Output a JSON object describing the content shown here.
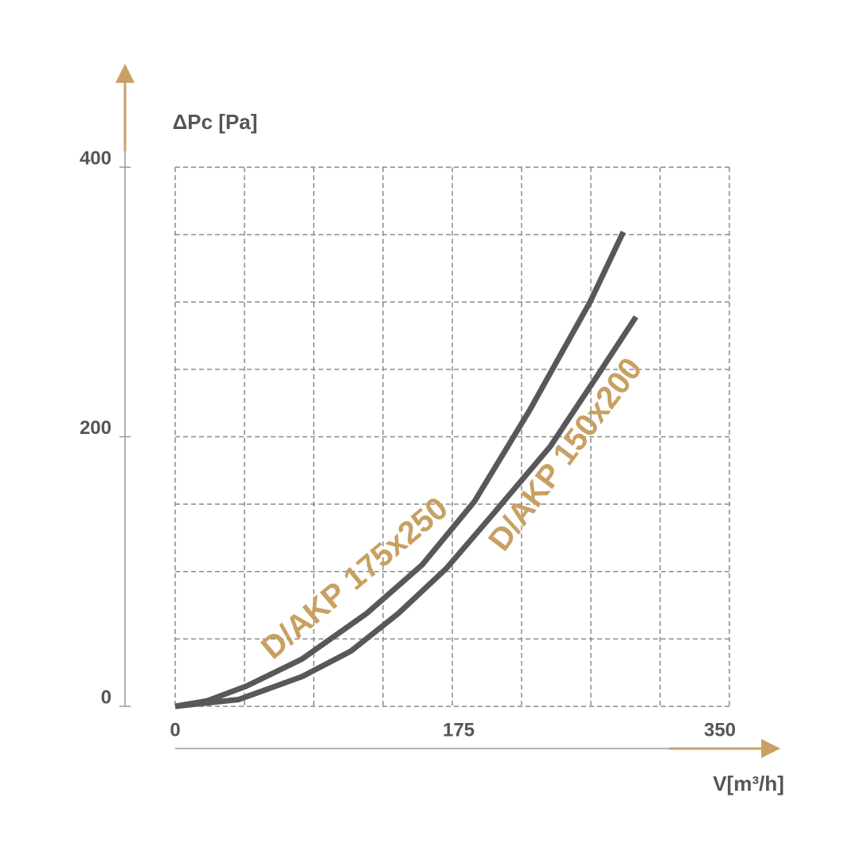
{
  "chart_data": {
    "type": "line",
    "y_label": "ΔPc [Pa]",
    "x_label": "V[m³/h]",
    "xlim": [
      0,
      350
    ],
    "xticks": [
      0,
      175,
      350
    ],
    "ylim": [
      0,
      400
    ],
    "yticks": [
      0,
      200,
      400
    ],
    "xgrid": [
      0,
      43.75,
      87.5,
      131.25,
      175,
      218.75,
      262.5,
      306.25,
      350
    ],
    "ygrid": [
      0,
      50,
      100,
      150,
      200,
      250,
      300,
      350,
      400
    ],
    "grid": true,
    "series": [
      {
        "name": "D/AKP 175x250",
        "color": "#58585a",
        "label_color": "#c8a062",
        "x": [
          0,
          20,
          45,
          80,
          121,
          156,
          189,
          224,
          242,
          262,
          283
        ],
        "values": [
          0,
          4,
          15,
          35,
          69,
          105,
          152,
          220,
          258,
          300,
          352
        ]
      },
      {
        "name": "D/AKP 150x200",
        "color": "#58585a",
        "label_color": "#c8a062",
        "x": [
          0,
          40,
          80,
          111,
          141,
          171,
          201,
          237,
          267,
          291
        ],
        "values": [
          0,
          5,
          22,
          41,
          69,
          102,
          143,
          193,
          246,
          289
        ]
      }
    ]
  }
}
